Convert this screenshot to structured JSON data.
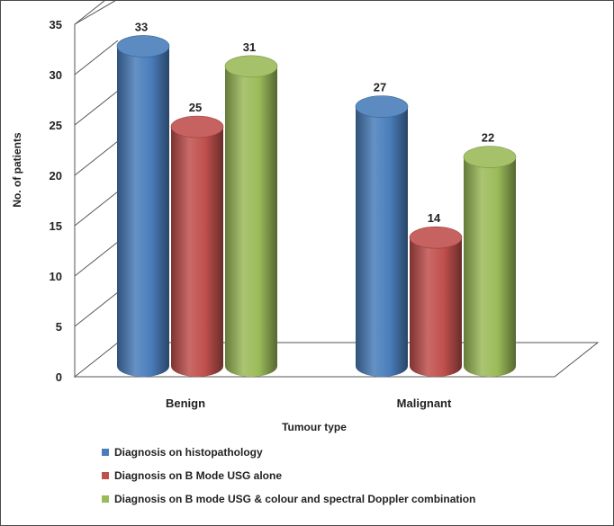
{
  "chart_data": {
    "type": "bar",
    "style": "3d-cylinder",
    "categories": [
      "Benign",
      "Malignant"
    ],
    "series": [
      {
        "name": "Diagnosis on histopathology",
        "values": [
          33,
          27
        ],
        "color": "#4a7ebb"
      },
      {
        "name": "Diagnosis on B Mode USG alone",
        "values": [
          25,
          14
        ],
        "color": "#c0504d"
      },
      {
        "name": "Diagnosis on B mode USG & colour and spectral Doppler combination",
        "values": [
          31,
          22
        ],
        "color": "#9bbb59"
      }
    ],
    "xlabel": "Tumour type",
    "ylabel": "No. of patients",
    "ylim": [
      0,
      35
    ],
    "yticks": [
      0,
      5,
      10,
      15,
      20,
      25,
      30,
      35
    ],
    "grid": true,
    "legend_position": "bottom"
  }
}
